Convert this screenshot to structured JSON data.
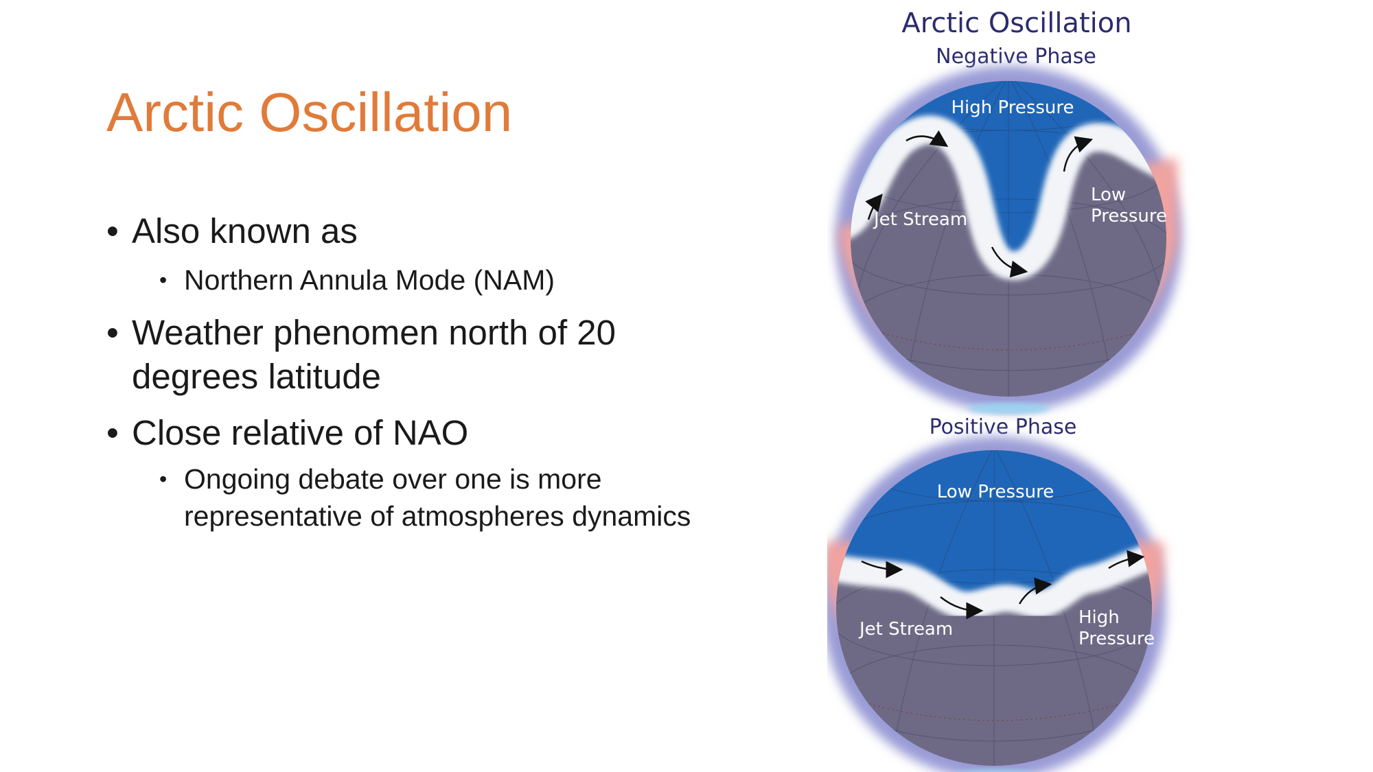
{
  "slide": {
    "title": "Arctic Oscillation",
    "bullets": [
      {
        "text": "Also known as",
        "level": 1
      },
      {
        "text": "Northern Annula Mode (NAM)",
        "level": 2
      },
      {
        "text": "Weather phenomen north of 20 degrees latitude",
        "level": 1
      },
      {
        "text": "Close relative of NAO",
        "level": 1
      },
      {
        "text": "Ongoing debate over one is more representative of atmospheres dynamics",
        "level": 2
      }
    ],
    "bullet_glyph": "•"
  },
  "figure": {
    "title": "Arctic Oscillation",
    "negative_phase": {
      "label": "Negative Phase",
      "top_label": "High Pressure",
      "side_label_line1": "Low",
      "side_label_line2": "Pressure",
      "jet_label": "Jet Stream"
    },
    "positive_phase": {
      "label": "Positive Phase",
      "top_label": "Low Pressure",
      "side_label_line1": "High",
      "side_label_line2": "Pressure",
      "jet_label": "Jet Stream"
    },
    "colors": {
      "title_text": "#2B2B6E",
      "ocean_blue": "#1F66B8",
      "globe_gray": "#6E6A86",
      "halo_blue": "#9A9BD6",
      "halo_red": "#F1A3A0",
      "jet_white": "#F2F4F8",
      "slide_title": "#E07B3A"
    }
  }
}
